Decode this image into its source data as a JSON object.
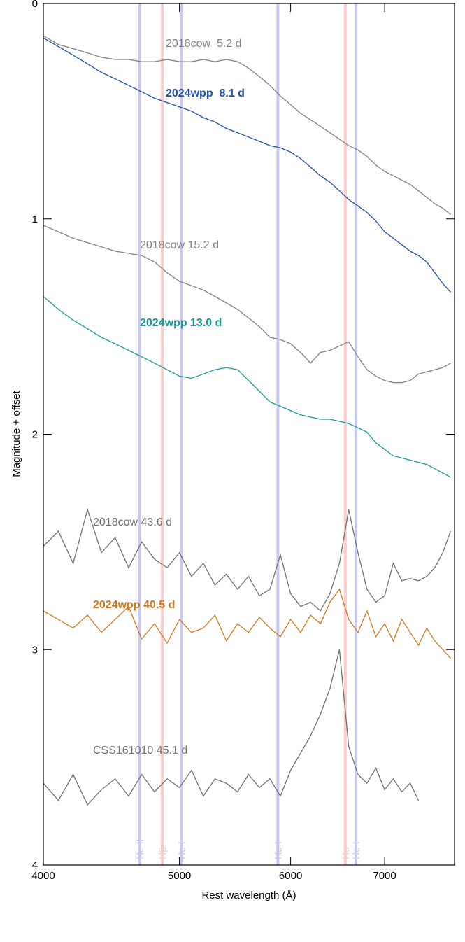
{
  "chart_data": {
    "type": "line",
    "xlabel": "Rest wavelength (Å)",
    "ylabel": "Magnitude + offset",
    "xlog": true,
    "xlim": [
      4000,
      7850
    ],
    "xticks": [
      4000,
      5000,
      6000,
      7000
    ],
    "ylim": [
      0,
      4
    ],
    "yticks": [
      0,
      1,
      2,
      3,
      4
    ],
    "y_inverted": true,
    "x": [
      4000,
      4100,
      4200,
      4300,
      4400,
      4500,
      4600,
      4700,
      4800,
      4900,
      5000,
      5100,
      5200,
      5300,
      5400,
      5500,
      5600,
      5700,
      5800,
      5900,
      6000,
      6100,
      6200,
      6300,
      6400,
      6500,
      6600,
      6700,
      6800,
      6900,
      7000,
      7100,
      7200,
      7300,
      7400,
      7500,
      7600,
      7700,
      7800
    ],
    "series": [
      {
        "name": "2018cow  5.2 d",
        "color": "#808080",
        "values": [
          0.15,
          0.19,
          0.21,
          0.23,
          0.25,
          0.26,
          0.26,
          0.27,
          0.27,
          0.26,
          0.27,
          0.27,
          0.26,
          0.27,
          0.26,
          0.27,
          0.3,
          0.34,
          0.38,
          0.43,
          0.47,
          0.51,
          0.54,
          0.57,
          0.6,
          0.63,
          0.66,
          0.68,
          0.71,
          0.75,
          0.78,
          0.8,
          0.82,
          0.84,
          0.87,
          0.9,
          0.93,
          0.95,
          0.98
        ]
      },
      {
        "name": "2024wpp  8.1 d",
        "color": "#1f4fa8",
        "values": [
          0.16,
          0.2,
          0.24,
          0.28,
          0.32,
          0.35,
          0.38,
          0.41,
          0.44,
          0.46,
          0.48,
          0.5,
          0.53,
          0.55,
          0.58,
          0.6,
          0.62,
          0.64,
          0.66,
          0.67,
          0.69,
          0.72,
          0.76,
          0.8,
          0.83,
          0.87,
          0.91,
          0.94,
          0.97,
          1.01,
          1.06,
          1.09,
          1.12,
          1.15,
          1.17,
          1.2,
          1.25,
          1.3,
          1.34
        ]
      },
      {
        "name": "2018cow 15.2 d",
        "color": "#808080",
        "values": [
          1.03,
          1.06,
          1.09,
          1.11,
          1.13,
          1.15,
          1.16,
          1.17,
          1.2,
          1.25,
          1.29,
          1.31,
          1.33,
          1.36,
          1.39,
          1.42,
          1.46,
          1.5,
          1.55,
          1.56,
          1.58,
          1.62,
          1.67,
          1.62,
          1.61,
          1.59,
          1.57,
          1.64,
          1.7,
          1.73,
          1.75,
          1.76,
          1.76,
          1.75,
          1.72,
          1.71,
          1.7,
          1.69,
          1.67
        ]
      },
      {
        "name": "2024wpp 13.0 d",
        "color": "#1a9a9a",
        "values": [
          1.36,
          1.42,
          1.47,
          1.51,
          1.55,
          1.58,
          1.61,
          1.64,
          1.67,
          1.7,
          1.73,
          1.74,
          1.72,
          1.7,
          1.69,
          1.7,
          1.75,
          1.8,
          1.85,
          1.87,
          1.89,
          1.91,
          1.92,
          1.93,
          1.93,
          1.94,
          1.95,
          1.97,
          1.99,
          2.04,
          2.07,
          2.1,
          2.11,
          2.12,
          2.13,
          2.14,
          2.16,
          2.18,
          2.2
        ]
      },
      {
        "name": "2018cow 43.6 d",
        "color": "#707070",
        "values": [
          2.52,
          2.45,
          2.6,
          2.35,
          2.55,
          2.48,
          2.62,
          2.5,
          2.58,
          2.62,
          2.55,
          2.66,
          2.6,
          2.7,
          2.65,
          2.72,
          2.66,
          2.75,
          2.72,
          2.56,
          2.74,
          2.8,
          2.78,
          2.82,
          2.74,
          2.6,
          2.35,
          2.55,
          2.72,
          2.78,
          2.75,
          2.6,
          2.68,
          2.67,
          2.68,
          2.66,
          2.62,
          2.55,
          2.45
        ]
      },
      {
        "name": "2024wpp 40.5 d",
        "color": "#d07a20",
        "values": [
          2.82,
          2.86,
          2.9,
          2.84,
          2.92,
          2.86,
          2.8,
          2.95,
          2.88,
          2.97,
          2.86,
          2.92,
          2.9,
          2.84,
          2.96,
          2.88,
          2.92,
          2.85,
          2.9,
          2.94,
          2.86,
          2.92,
          2.84,
          2.88,
          2.78,
          2.72,
          2.86,
          2.92,
          2.82,
          2.94,
          2.88,
          2.96,
          2.86,
          2.92,
          2.98,
          2.9,
          2.96,
          3.0,
          3.04
        ]
      },
      {
        "name": "CSS161010 45.1 d",
        "color": "#707070",
        "values": [
          3.62,
          3.7,
          3.58,
          3.72,
          3.65,
          3.6,
          3.68,
          3.58,
          3.66,
          3.6,
          3.64,
          3.56,
          3.68,
          3.6,
          3.62,
          3.66,
          3.58,
          3.64,
          3.6,
          3.68,
          3.56,
          3.48,
          3.4,
          3.3,
          3.18,
          3.0,
          3.45,
          3.58,
          3.62,
          3.55,
          3.65,
          3.6,
          3.66,
          3.62,
          3.7,
          null,
          null,
          null,
          null
        ]
      }
    ],
    "lines": [
      {
        "label": "He II",
        "x": 4686,
        "color": "#c8c8f4"
      },
      {
        "label": "Hβ",
        "x": 4861,
        "color": "#f8cccc"
      },
      {
        "label": "He I",
        "x": 5016,
        "color": "#c8c8f4"
      },
      {
        "label": "He I",
        "x": 5876,
        "color": "#c8c8f4"
      },
      {
        "label": "Hα",
        "x": 6563,
        "color": "#f8cccc"
      },
      {
        "label": "He I",
        "x": 6678,
        "color": "#c8c8f4"
      }
    ]
  }
}
